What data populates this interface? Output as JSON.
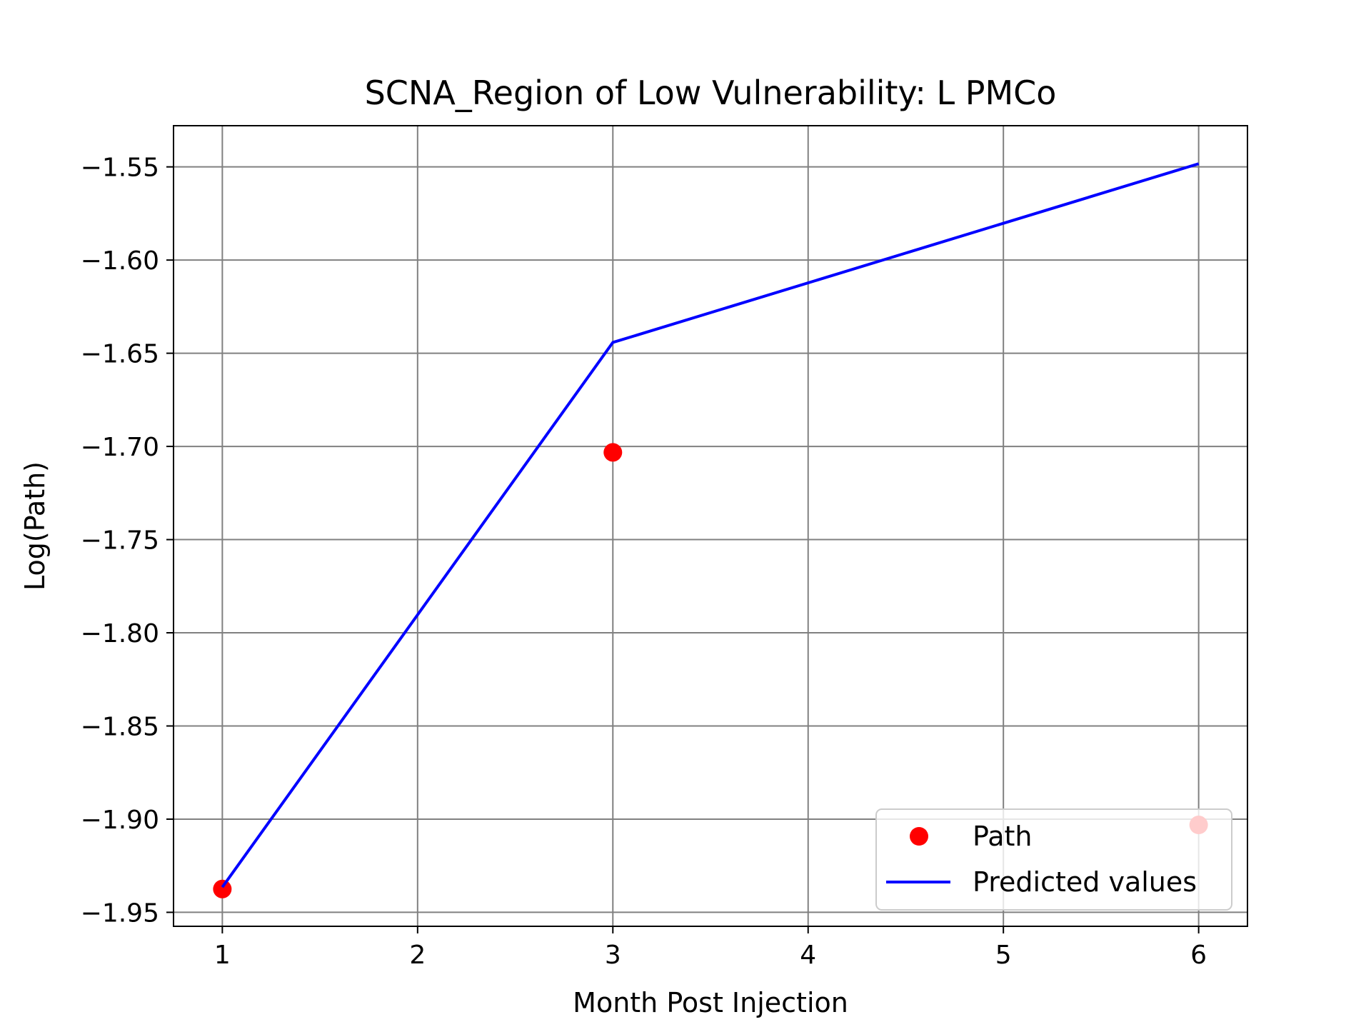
{
  "chart_data": {
    "type": "line",
    "title": "SCNA_Region of Low Vulnerability: L PMCo",
    "xlabel": "Month Post Injection",
    "ylabel": "Log(Path)",
    "xlim": [
      0.75,
      6.25
    ],
    "ylim": [
      -1.9575,
      -1.5279
    ],
    "xticks": [
      1,
      2,
      3,
      4,
      5,
      6
    ],
    "xtick_labels": [
      "1",
      "2",
      "3",
      "4",
      "5",
      "6"
    ],
    "yticks": [
      -1.95,
      -1.9,
      -1.85,
      -1.8,
      -1.75,
      -1.7,
      -1.65,
      -1.6,
      -1.55
    ],
    "ytick_labels": [
      "−1.95",
      "−1.90",
      "−1.85",
      "−1.80",
      "−1.75",
      "−1.70",
      "−1.65",
      "−1.60",
      "−1.55"
    ],
    "grid": true,
    "legend_position": "lower-right",
    "series": [
      {
        "name": "Path",
        "kind": "scatter",
        "color": "#ff0000",
        "x": [
          1,
          3,
          6
        ],
        "y": [
          -1.9375,
          -1.7032,
          -1.9031
        ]
      },
      {
        "name": "Predicted values",
        "kind": "line",
        "color": "#0000ff",
        "x": [
          1,
          3,
          6
        ],
        "y": [
          -1.9365,
          -1.6442,
          -1.5483
        ]
      }
    ]
  }
}
